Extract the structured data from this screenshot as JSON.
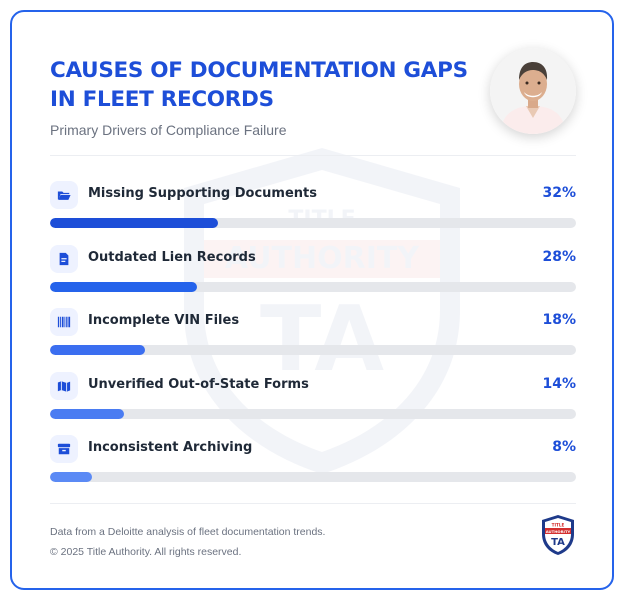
{
  "header": {
    "title": "CAUSES OF DOCUMENTATION GAPS IN FLEET RECORDS",
    "subtitle": "Primary Drivers of Compliance Failure"
  },
  "chart_data": {
    "type": "bar",
    "orientation": "horizontal",
    "title": "CAUSES OF DOCUMENTATION GAPS IN FLEET RECORDS",
    "subtitle": "Primary Drivers of Compliance Failure",
    "categories": [
      "Missing Supporting Documents",
      "Outdated Lien Records",
      "Incomplete VIN Files",
      "Unverified Out-of-State Forms",
      "Inconsistent Archiving"
    ],
    "values": [
      32,
      28,
      18,
      14,
      8
    ],
    "value_labels": [
      "32%",
      "28%",
      "18%",
      "14%",
      "8%"
    ],
    "icons": [
      "folder-open-icon",
      "document-icon",
      "barcode-icon",
      "map-icon",
      "archive-box-icon"
    ],
    "bar_colors": [
      "#1d4ed8",
      "#2563eb",
      "#3b6ef0",
      "#4a7cf2",
      "#5b8af5"
    ],
    "track_color": "#e5e7eb",
    "xlim": [
      0,
      100
    ],
    "grid": false,
    "legend": "none"
  },
  "footer": {
    "source": "Data from a Deloitte analysis of fleet documentation trends.",
    "copyright": "© 2025 Title Authority. All rights reserved."
  },
  "watermark": {
    "top": "TITLE",
    "middle": "AUTHORITY",
    "bottom": "TA"
  },
  "logo": {
    "top": "TITLE",
    "middle": "AUTHORITY",
    "bottom": "TA"
  },
  "colors": {
    "accent": "#1d4ed8",
    "border": "#2563eb",
    "logo_red": "#d32f2f",
    "logo_navy": "#1e3a8a"
  }
}
